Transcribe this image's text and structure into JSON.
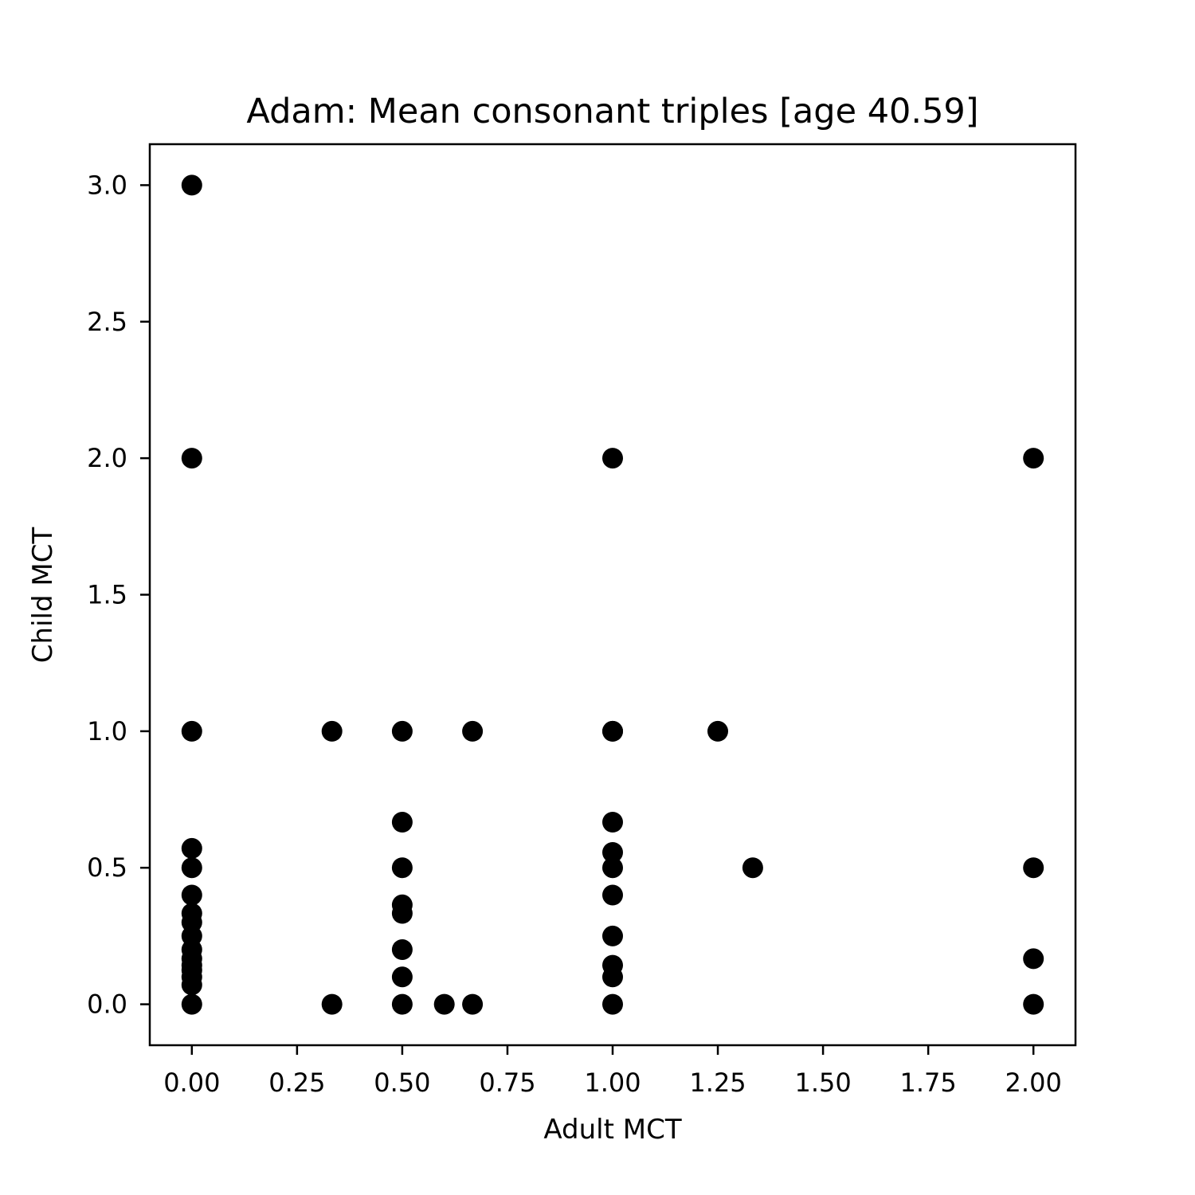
{
  "chart_data": {
    "type": "scatter",
    "title": "Adam: Mean consonant triples [age 40.59]",
    "xlabel": "Adult MCT",
    "ylabel": "Child MCT",
    "xlim": [
      -0.1,
      2.1
    ],
    "ylim": [
      -0.15,
      3.15
    ],
    "xticks": [
      0.0,
      0.25,
      0.5,
      0.75,
      1.0,
      1.25,
      1.5,
      1.75,
      2.0
    ],
    "xtick_labels": [
      "0.00",
      "0.25",
      "0.50",
      "0.75",
      "1.00",
      "1.25",
      "1.50",
      "1.75",
      "2.00"
    ],
    "yticks": [
      0.0,
      0.5,
      1.0,
      1.5,
      2.0,
      2.5,
      3.0
    ],
    "ytick_labels": [
      "0.0",
      "0.5",
      "1.0",
      "1.5",
      "2.0",
      "2.5",
      "3.0"
    ],
    "grid": false,
    "marker_color": "#000000",
    "x": [
      0,
      0,
      0,
      0,
      0,
      0,
      0,
      0,
      0,
      0,
      0,
      0,
      0,
      0,
      0,
      0,
      0.333,
      0.333,
      0.5,
      0.5,
      0.5,
      0.5,
      0.5,
      0.5,
      0.5,
      0.5,
      0.6,
      0.667,
      0.667,
      1.0,
      1.0,
      1.0,
      1.0,
      1.0,
      1.0,
      1.0,
      1.0,
      1.0,
      1.0,
      1.0,
      1.25,
      1.333,
      2.0,
      2.0,
      2.0,
      2.0
    ],
    "y": [
      3.0,
      2.0,
      1.0,
      0.571,
      0.5,
      0.4,
      0.333,
      0.3,
      0.25,
      0.2,
      0.167,
      0.143,
      0.125,
      0.1,
      0.071,
      0.0,
      1.0,
      0.0,
      1.0,
      0.667,
      0.5,
      0.364,
      0.333,
      0.2,
      0.1,
      0.0,
      0.0,
      1.0,
      0.0,
      2.0,
      1.0,
      0.667,
      0.556,
      0.5,
      0.4,
      0.25,
      0.143,
      0.1,
      0.0,
      1.0,
      1.0,
      0.5,
      2.0,
      0.5,
      0.167,
      0.0
    ]
  }
}
